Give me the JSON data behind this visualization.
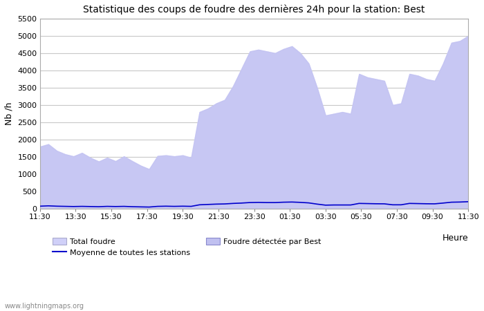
{
  "title": "Statistique des coups de foudre des dernières 24h pour la station: Best",
  "xlabel": "Heure",
  "ylabel": "Nb /h",
  "ylim": [
    0,
    5500
  ],
  "yticks": [
    0,
    500,
    1000,
    1500,
    2000,
    2500,
    3000,
    3500,
    4000,
    4500,
    5000,
    5500
  ],
  "xtick_labels": [
    "11:30",
    "13:30",
    "15:30",
    "17:30",
    "19:30",
    "21:30",
    "23:30",
    "01:30",
    "03:30",
    "05:30",
    "07:30",
    "09:30",
    "11:30"
  ],
  "background_color": "#ffffff",
  "plot_bg_color": "#ffffff",
  "grid_color": "#c8c8c8",
  "fill_total_color": "#d0d0f8",
  "fill_best_color": "#c0c0f0",
  "line_color": "#0000cc",
  "watermark": "www.lightningmaps.org",
  "total_foudre": [
    1800,
    1870,
    1680,
    1580,
    1520,
    1620,
    1480,
    1370,
    1480,
    1380,
    1520,
    1380,
    1250,
    1150,
    1530,
    1550,
    1520,
    1550,
    1480,
    2800,
    2900,
    3050,
    3150,
    3550,
    4050,
    4550,
    4600,
    4550,
    4500,
    4620,
    4700,
    4500,
    4200,
    3500,
    2700,
    2750,
    2800,
    2750,
    3900,
    3800,
    3750,
    3700,
    3000,
    3050,
    3900,
    3850,
    3750,
    3700,
    4200,
    4800,
    4850,
    5000
  ],
  "moyenne_stations": [
    80,
    90,
    80,
    75,
    70,
    75,
    70,
    65,
    75,
    70,
    75,
    65,
    60,
    55,
    75,
    80,
    75,
    80,
    75,
    120,
    130,
    140,
    145,
    160,
    170,
    185,
    190,
    185,
    185,
    195,
    200,
    190,
    175,
    140,
    110,
    115,
    115,
    115,
    160,
    155,
    150,
    148,
    120,
    120,
    160,
    155,
    150,
    148,
    170,
    195,
    200,
    210
  ]
}
